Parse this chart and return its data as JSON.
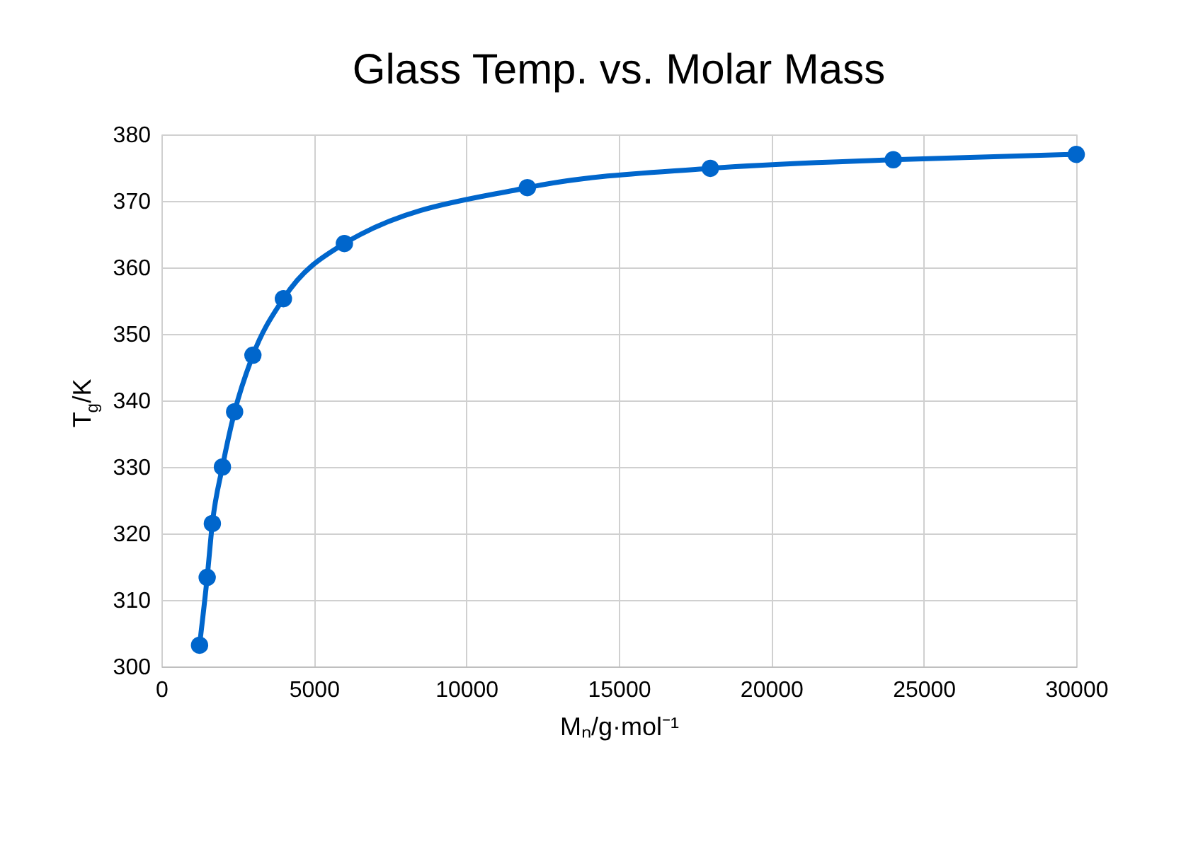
{
  "chart_data": {
    "type": "line",
    "title": "Glass Temp. vs. Molar Mass",
    "xlabel": "Mₙ/g·mol⁻¹",
    "ylabel": "T$_{g}$/K",
    "x": [
      1250,
      1500,
      1670,
      2000,
      2400,
      3000,
      4000,
      6000,
      12000,
      18000,
      24000,
      30000
    ],
    "series": [
      {
        "color": "#0066cc",
        "values": [
          303.2,
          313.4,
          321.5,
          330.0,
          338.3,
          346.8,
          355.3,
          363.6,
          372.0,
          374.9,
          376.2,
          377.0
        ]
      }
    ],
    "xlim": [
      0,
      30000
    ],
    "xticks": [
      0,
      5000,
      10000,
      15000,
      20000,
      25000,
      30000
    ],
    "ylim": [
      300,
      380
    ],
    "yticks": [
      300,
      310,
      320,
      330,
      340,
      350,
      360,
      370,
      380
    ],
    "grid": true,
    "marker": "circle",
    "line_style": "solid"
  }
}
